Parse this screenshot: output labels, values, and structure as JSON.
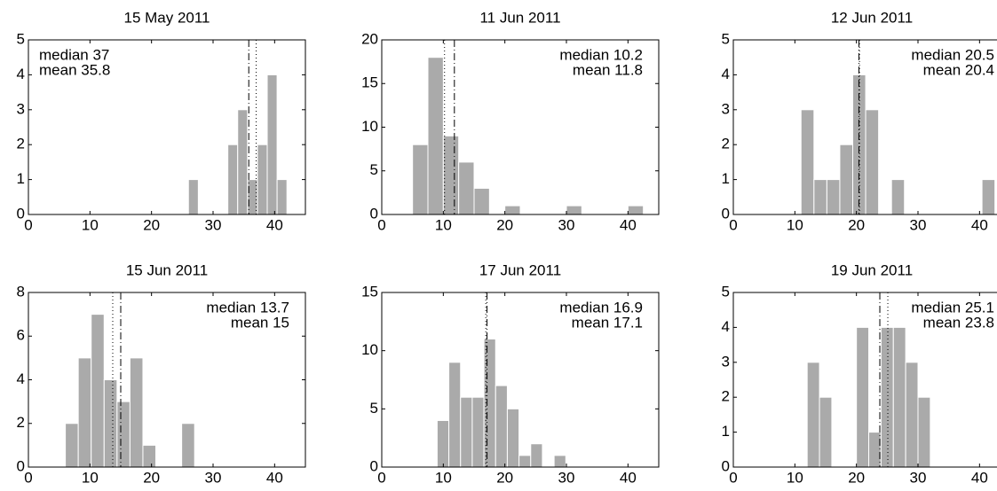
{
  "chart_data": [
    {
      "type": "histogram",
      "title": "15 May 2011",
      "color": "#aaaaaa",
      "bins": [
        26,
        27.6,
        29.2,
        30.8,
        32.4,
        34,
        35.6,
        37.2,
        38.8,
        40.4,
        42
      ],
      "values": [
        1,
        0,
        0,
        0,
        2,
        3,
        1,
        2,
        4,
        1
      ],
      "xlim": [
        0,
        45
      ],
      "ylim": [
        0,
        5
      ],
      "xticks": [
        0,
        10,
        20,
        30,
        40
      ],
      "yticks": [
        0,
        1,
        2,
        3,
        4,
        5
      ],
      "median": 37,
      "median_label": "median 37",
      "mean": 35.8,
      "mean_label": "mean 35.8",
      "annotation_corner": "upper left"
    },
    {
      "type": "histogram",
      "title": "11 Jun 2011",
      "color": "#aaaaaa",
      "bins": [
        5,
        7.5,
        10,
        12.5,
        15,
        17.5,
        20,
        22.5,
        25,
        27.5,
        30,
        32.5,
        35,
        37.5,
        40,
        42.5
      ],
      "values": [
        8,
        18,
        9,
        6,
        3,
        0,
        1,
        0,
        0,
        0,
        1,
        0,
        0,
        0,
        1
      ],
      "xlim": [
        0,
        45
      ],
      "ylim": [
        0,
        20
      ],
      "xticks": [
        0,
        10,
        20,
        30,
        40
      ],
      "yticks": [
        0,
        5,
        10,
        15,
        20
      ],
      "median": 10.2,
      "median_label": "median 10.2",
      "mean": 11.8,
      "mean_label": "mean 11.8",
      "annotation_corner": "upper right"
    },
    {
      "type": "histogram",
      "title": "12 Jun 2011",
      "color": "#aaaaaa",
      "bins": [
        11,
        13.1,
        15.2,
        17.3,
        19.4,
        21.5,
        23.6,
        25.7,
        27.8,
        29.9,
        32,
        34.1,
        36.2,
        38.3,
        40.4,
        42.5
      ],
      "values": [
        3,
        1,
        1,
        2,
        4,
        3,
        0,
        1,
        0,
        0,
        0,
        0,
        0,
        0,
        1
      ],
      "xlim": [
        0,
        45
      ],
      "ylim": [
        0,
        5
      ],
      "xticks": [
        0,
        10,
        20,
        30,
        40
      ],
      "yticks": [
        0,
        1,
        2,
        3,
        4,
        5
      ],
      "median": 20.5,
      "median_label": "median 20.5",
      "mean": 20.4,
      "mean_label": "mean 20.4",
      "annotation_corner": "upper right"
    },
    {
      "type": "histogram",
      "title": "15 Jun 2011",
      "color": "#aaaaaa",
      "bins": [
        6,
        8.1,
        10.2,
        12.3,
        14.4,
        16.5,
        18.6,
        20.7,
        22.8,
        24.9,
        27
      ],
      "values": [
        2,
        5,
        7,
        4,
        3,
        5,
        1,
        0,
        0,
        2
      ],
      "xlim": [
        0,
        45
      ],
      "ylim": [
        0,
        8
      ],
      "xticks": [
        0,
        10,
        20,
        30,
        40
      ],
      "yticks": [
        0,
        2,
        4,
        6,
        8
      ],
      "median": 13.7,
      "median_label": "median 13.7",
      "mean": 15,
      "mean_label": "mean 15",
      "annotation_corner": "upper right"
    },
    {
      "type": "histogram",
      "title": "17 Jun 2011",
      "color": "#aaaaaa",
      "bins": [
        9,
        10.9,
        12.8,
        14.7,
        16.6,
        18.5,
        20.4,
        22.3,
        24.2,
        26.1,
        28,
        29.9
      ],
      "values": [
        4,
        9,
        6,
        6,
        11,
        7,
        5,
        1,
        2,
        0,
        1
      ],
      "xlim": [
        0,
        45
      ],
      "ylim": [
        0,
        15
      ],
      "xticks": [
        0,
        10,
        20,
        30,
        40
      ],
      "yticks": [
        0,
        5,
        10,
        15
      ],
      "median": 16.9,
      "median_label": "median 16.9",
      "mean": 17.1,
      "mean_label": "mean 17.1",
      "annotation_corner": "upper right"
    },
    {
      "type": "histogram",
      "title": "19 Jun 2011",
      "color": "#aaaaaa",
      "bins": [
        12,
        14,
        16,
        18,
        20,
        22,
        24,
        26,
        28,
        30,
        32
      ],
      "values": [
        3,
        2,
        0,
        0,
        4,
        1,
        4,
        4,
        3,
        2
      ],
      "xlim": [
        0,
        45
      ],
      "ylim": [
        0,
        5
      ],
      "xticks": [
        0,
        10,
        20,
        30,
        40
      ],
      "yticks": [
        0,
        1,
        2,
        3,
        4,
        5
      ],
      "median": 25.1,
      "median_label": "median 25.1",
      "mean": 23.8,
      "mean_label": "mean 23.8",
      "annotation_corner": "upper right"
    }
  ]
}
